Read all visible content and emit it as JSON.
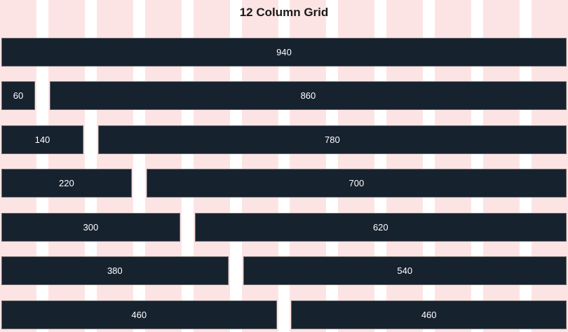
{
  "title": "12 Column Grid",
  "grid": {
    "columns": 12
  },
  "colors": {
    "column": "#fde4e4",
    "bar": "#17222f",
    "bar_border": "#6b6b6b",
    "bar_text": "#ffffff"
  },
  "rows": [
    {
      "blocks": [
        {
          "label": "940",
          "span": 12
        }
      ]
    },
    {
      "blocks": [
        {
          "label": "60",
          "span": 1
        },
        {
          "label": "860",
          "span": 11
        }
      ]
    },
    {
      "blocks": [
        {
          "label": "140",
          "span": 2
        },
        {
          "label": "780",
          "span": 10
        }
      ]
    },
    {
      "blocks": [
        {
          "label": "220",
          "span": 3
        },
        {
          "label": "700",
          "span": 9
        }
      ]
    },
    {
      "blocks": [
        {
          "label": "300",
          "span": 4
        },
        {
          "label": "620",
          "span": 8
        }
      ]
    },
    {
      "blocks": [
        {
          "label": "380",
          "span": 5
        },
        {
          "label": "540",
          "span": 7
        }
      ]
    },
    {
      "blocks": [
        {
          "label": "460",
          "span": 6
        },
        {
          "label": "460",
          "span": 6
        }
      ]
    }
  ]
}
